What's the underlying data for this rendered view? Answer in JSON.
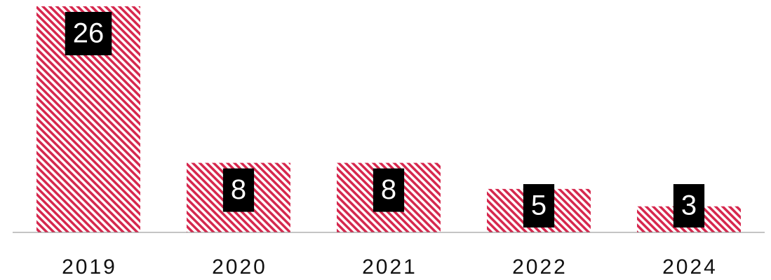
{
  "chart_data": {
    "type": "bar",
    "categories": [
      "2019",
      "2020",
      "2021",
      "2022",
      "2024"
    ],
    "values": [
      26,
      8,
      8,
      5,
      3
    ],
    "color": "#d6284e"
  }
}
